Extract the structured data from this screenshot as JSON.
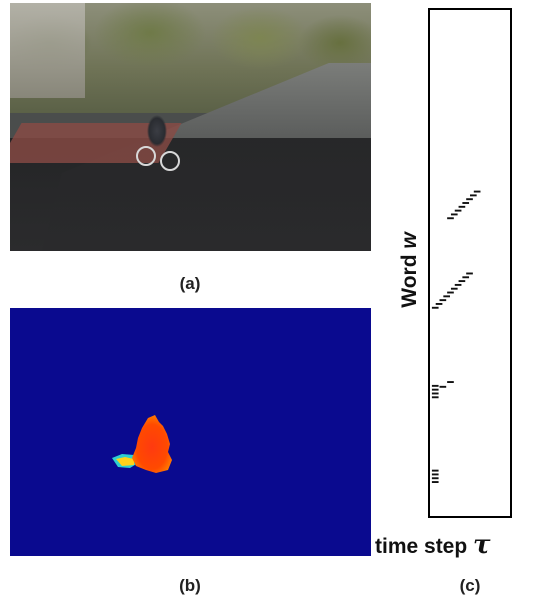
{
  "figure": {
    "panel_a": {
      "caption": "(a)"
    },
    "panel_b": {
      "caption": "(b)"
    },
    "panel_c": {
      "caption": "(c)",
      "ylabel_text": "Word",
      "ylabel_var": "w",
      "xlabel_text": "time step",
      "xlabel_var": "τ"
    }
  },
  "chart_data": {
    "type": "scatter",
    "title": "",
    "xlabel": "time step τ",
    "ylabel": "Word w",
    "grid": false,
    "marker": "short horizontal dash",
    "points": [
      {
        "x": 1,
        "y": 480
      },
      {
        "x": 1,
        "y": 484
      },
      {
        "x": 1,
        "y": 488
      },
      {
        "x": 1,
        "y": 492
      },
      {
        "x": 1,
        "y": 391
      },
      {
        "x": 1,
        "y": 395
      },
      {
        "x": 1,
        "y": 399
      },
      {
        "x": 1,
        "y": 403
      },
      {
        "x": 3,
        "y": 392
      },
      {
        "x": 5,
        "y": 387
      },
      {
        "x": 1,
        "y": 309
      },
      {
        "x": 2,
        "y": 305
      },
      {
        "x": 3,
        "y": 301
      },
      {
        "x": 4,
        "y": 297
      },
      {
        "x": 5,
        "y": 293
      },
      {
        "x": 6,
        "y": 289
      },
      {
        "x": 7,
        "y": 285
      },
      {
        "x": 8,
        "y": 281
      },
      {
        "x": 9,
        "y": 277
      },
      {
        "x": 10,
        "y": 273
      },
      {
        "x": 5,
        "y": 215
      },
      {
        "x": 6,
        "y": 211
      },
      {
        "x": 7,
        "y": 207
      },
      {
        "x": 8,
        "y": 203
      },
      {
        "x": 9,
        "y": 199
      },
      {
        "x": 10,
        "y": 195
      },
      {
        "x": 11,
        "y": 191
      },
      {
        "x": 12,
        "y": 187
      }
    ]
  }
}
